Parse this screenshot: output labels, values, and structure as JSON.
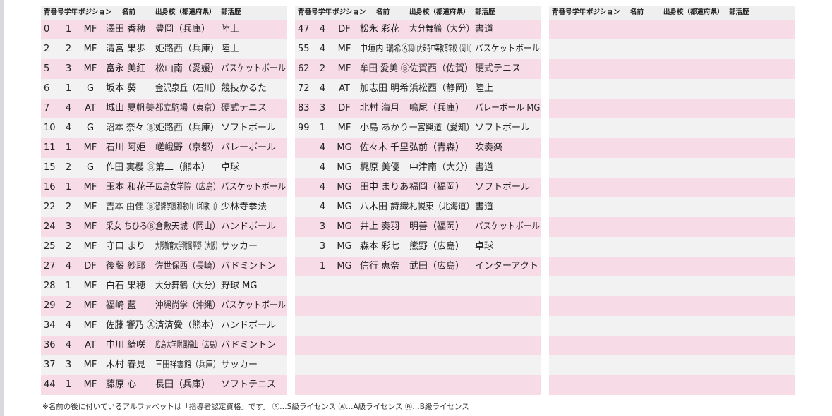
{
  "tables": [
    {
      "header": [
        "背番号",
        "学年",
        "ポジション",
        "名前",
        "出身校（都道府県）",
        "部活歴"
      ],
      "rows": [
        [
          "0",
          "1",
          "MF",
          "澤田 香穂",
          "豊岡（兵庫）",
          "陸上"
        ],
        [
          "2",
          "2",
          "MF",
          "清宮 果歩",
          "姫路西（兵庫）",
          "陸上"
        ],
        [
          "5",
          "3",
          "MF",
          "富永 美紅",
          "松山南（愛媛）",
          "バスケットボール"
        ],
        [
          "6",
          "1",
          "G",
          "坂本 葵",
          "金沢泉丘（石川）",
          "競技かるた"
        ],
        [
          "7",
          "4",
          "AT",
          "城山 夏帆美",
          "都立駒場（東京）",
          "硬式テニス"
        ],
        [
          "10",
          "4",
          "G",
          "沼本 奈々 Ⓑ",
          "姫路西（兵庫）",
          "ソフトボール"
        ],
        [
          "11",
          "1",
          "MF",
          "石川 阿姫",
          "嵯峨野（京都）",
          "バレーボール"
        ],
        [
          "15",
          "2",
          "G",
          "作田 実櫻 Ⓑ",
          "第二（熊本）",
          "卓球"
        ],
        [
          "16",
          "1",
          "MF",
          "玉本 和花子",
          "広島女学院（広島）",
          "バスケットボール"
        ],
        [
          "22",
          "2",
          "MF",
          "吉本 由佳 Ⓑ",
          "智辯学園和歌山（和歌山）",
          "少林寺拳法"
        ],
        [
          "24",
          "3",
          "MF",
          "采女 ちひろⒷ",
          "倉敷天城（岡山）",
          "ハンドボール"
        ],
        [
          "25",
          "2",
          "MF",
          "守口 まり",
          "大阪教育大学附属平野（大阪）",
          "サッカー"
        ],
        [
          "27",
          "4",
          "DF",
          "後藤 紗耶",
          "佐世保西（長崎）",
          "バドミントン"
        ],
        [
          "28",
          "1",
          "MF",
          "白石 果穂",
          "大分舞鶴（大分）",
          "野球 MG"
        ],
        [
          "29",
          "2",
          "MF",
          "福崎 藍",
          "沖縄尚学（沖縄）",
          "バスケットボール"
        ],
        [
          "34",
          "4",
          "MF",
          "佐藤 響乃 Ⓐ",
          "済済黌（熊本）",
          "ハンドボール"
        ],
        [
          "36",
          "4",
          "AT",
          "中川 綺咲",
          "広島大学附属福山（広島）",
          "バドミントン"
        ],
        [
          "37",
          "3",
          "MF",
          "木村 春見",
          "三田祥雲館（兵庫）",
          "サッカー"
        ],
        [
          "44",
          "1",
          "MF",
          "藤原 心",
          "長田（兵庫）",
          "ソフトテニス"
        ]
      ]
    },
    {
      "header": [
        "背番号",
        "学年",
        "ポジション",
        "名前",
        "出身校（都道府県）",
        "部活歴"
      ],
      "rows": [
        [
          "47",
          "4",
          "DF",
          "松永 彩花",
          "大分舞鶴（大分）",
          "書道"
        ],
        [
          "55",
          "4",
          "MF",
          "中垣内 瑞希Ⓐ",
          "岡山大安寺中等教育学校（岡山）",
          "バスケットボール"
        ],
        [
          "62",
          "2",
          "MF",
          "牟田 愛美 Ⓑ",
          "佐賀西（佐賀）",
          "硬式テニス"
        ],
        [
          "72",
          "4",
          "AT",
          "加志田 明希",
          "浜松西（静岡）",
          "陸上"
        ],
        [
          "83",
          "3",
          "DF",
          "北村 海月",
          "鳴尾（兵庫）",
          "バレーボール MG"
        ],
        [
          "99",
          "1",
          "MF",
          "小島 あかり",
          "一宮興道（愛知）",
          "ソフトボール"
        ],
        [
          null,
          "4",
          "MG",
          "佐々木 千里",
          "弘前（青森）",
          "吹奏楽"
        ],
        [
          null,
          "4",
          "MG",
          "梶原 美優",
          "中津南（大分）",
          "書道"
        ],
        [
          null,
          "4",
          "MG",
          "田中 まりあ",
          "福岡（福岡）",
          "ソフトボール"
        ],
        [
          null,
          "4",
          "MG",
          "八木田 詩織",
          "札幌東（北海道）",
          "書道"
        ],
        [
          null,
          "3",
          "MG",
          "井上 奏羽",
          "明善（福岡）",
          "バスケットボール"
        ],
        [
          null,
          "3",
          "MG",
          "森本 彩七",
          "熊野（広島）",
          "卓球"
        ],
        [
          null,
          "1",
          "MG",
          "信行 恵奈",
          "武田（広島）",
          "インターアクト"
        ]
      ]
    },
    {
      "header": [
        "背番号",
        "学年",
        "ポジション",
        "名前",
        "出身校（都道府県）",
        "部活歴"
      ],
      "rows": []
    }
  ],
  "footnote": "※名前の後に付いているアルファベットは「指導者認定資格」です。 Ⓢ…S級ライセンス Ⓐ…A級ライセンス Ⓑ…B級ライセンス"
}
